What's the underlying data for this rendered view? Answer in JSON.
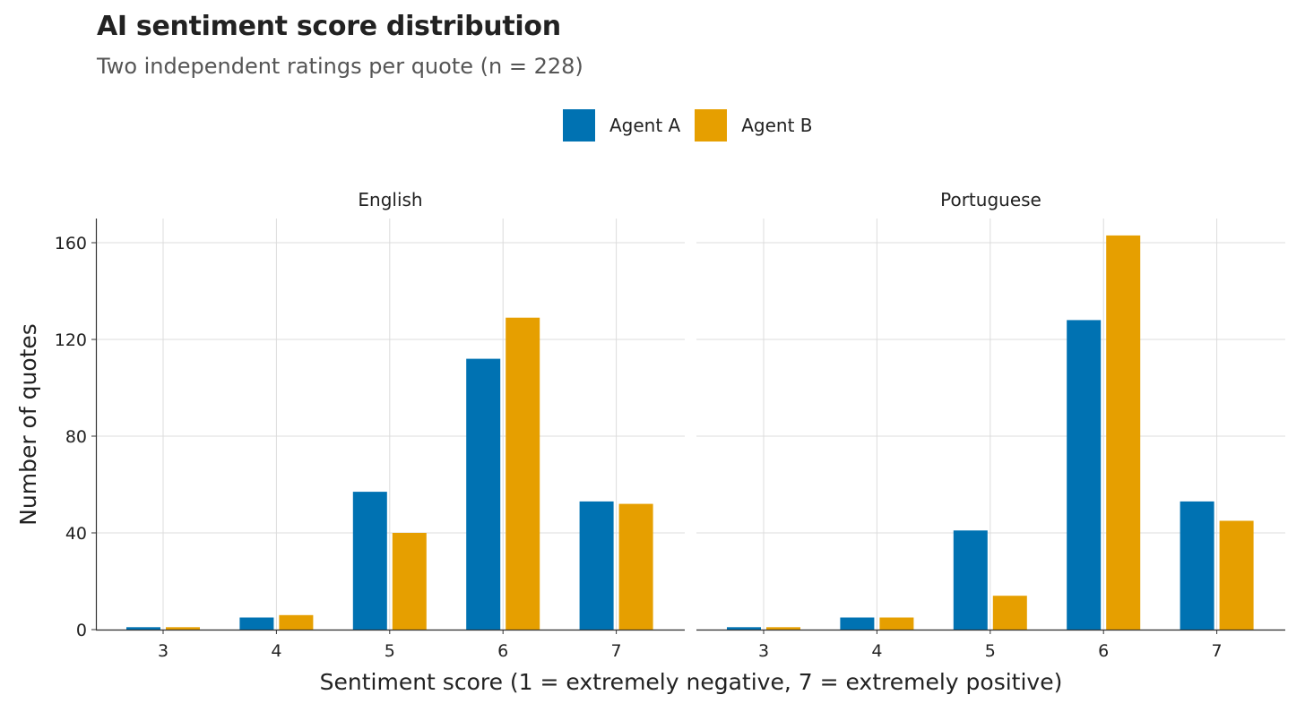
{
  "chart_data": {
    "type": "bar",
    "title": "AI sentiment score distribution",
    "subtitle": "Two independent ratings per quote (n = 228)",
    "xlabel": "Sentiment score (1 = extremely negative, 7 = extremely positive)",
    "ylabel": "Number of quotes",
    "ylim": [
      0,
      170
    ],
    "yticks": [
      0,
      40,
      80,
      120,
      160
    ],
    "categories": [
      "3",
      "4",
      "5",
      "6",
      "7"
    ],
    "legend": {
      "position": "top",
      "entries": [
        "Agent A",
        "Agent B"
      ]
    },
    "colors": {
      "Agent A": "#0072B2",
      "Agent B": "#E69F00"
    },
    "panels": [
      {
        "label": "English",
        "series": [
          {
            "name": "Agent A",
            "values": [
              1,
              5,
              57,
              112,
              53
            ]
          },
          {
            "name": "Agent B",
            "values": [
              1,
              6,
              40,
              129,
              52
            ]
          }
        ]
      },
      {
        "label": "Portuguese",
        "series": [
          {
            "name": "Agent A",
            "values": [
              1,
              5,
              41,
              128,
              53
            ]
          },
          {
            "name": "Agent B",
            "values": [
              1,
              5,
              14,
              163,
              45
            ]
          }
        ]
      }
    ]
  }
}
